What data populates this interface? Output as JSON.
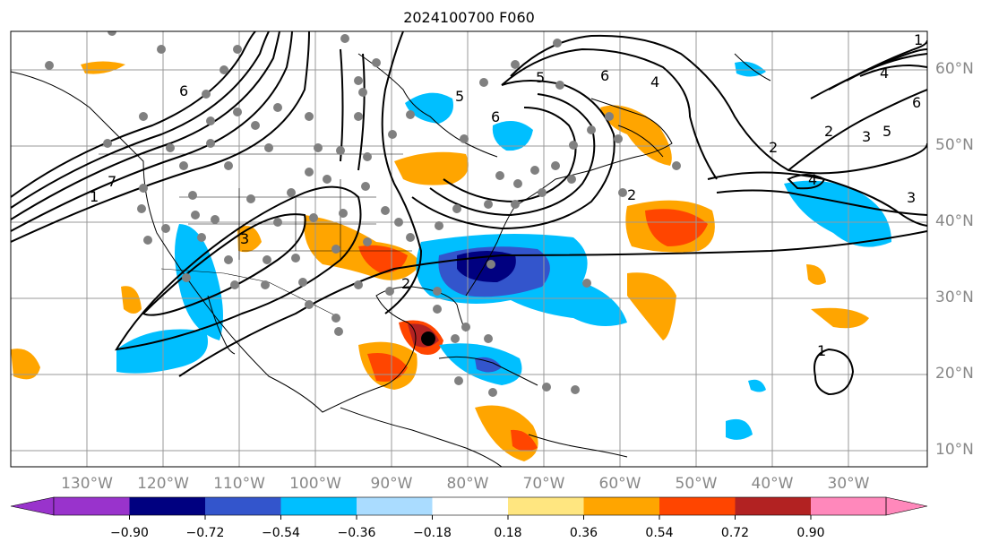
{
  "title": "2024100700 F060",
  "lat_labels": [
    "60°N",
    "50°N",
    "40°N",
    "30°N",
    "20°N",
    "10°N"
  ],
  "lon_labels": [
    "130°W",
    "120°W",
    "110°W",
    "100°W",
    "90°W",
    "80°W",
    "70°W",
    "60°W",
    "50°W",
    "40°W",
    "30°W"
  ],
  "colorbar": {
    "ticks": [
      "−0.90",
      "−0.72",
      "−0.54",
      "−0.36",
      "−0.18",
      "0.18",
      "0.36",
      "0.54",
      "0.72",
      "0.90"
    ],
    "colors": [
      "#9933cc",
      "#000080",
      "#3355cc",
      "#00bfff",
      "#aadcff",
      "#ffffff",
      "#ffe680",
      "#ffa500",
      "#ff4500",
      "#b22222",
      "#ff88bb"
    ]
  },
  "contour_labels": [
    "6",
    "5",
    "6",
    "6",
    "5",
    "4",
    "2",
    "1",
    "2",
    "3",
    "5",
    "4",
    "6",
    "7",
    "1",
    "2",
    "3",
    "4",
    "1",
    "3",
    "2"
  ]
}
